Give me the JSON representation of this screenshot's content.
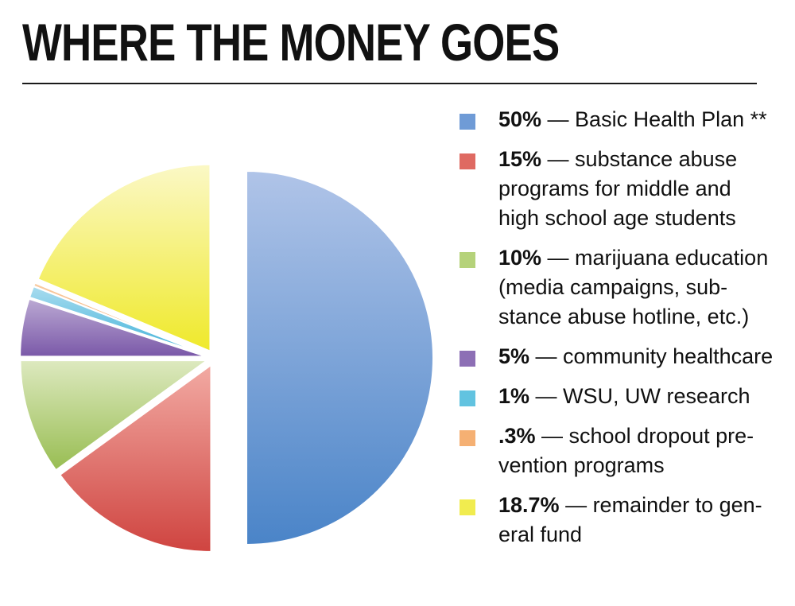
{
  "title": "WHERE THE MONEY GOES",
  "chart_data": {
    "type": "pie",
    "title": "WHERE THE MONEY GOES",
    "legend_position": "right",
    "slices": [
      {
        "label": "Basic Health Plan **",
        "percent_label": "50%",
        "value": 50,
        "color": "#6f9bd6",
        "color_light": "#b0c4e8",
        "color_dark": "#4a84c8",
        "desc_lines": [
          "— Basic Health Plan **"
        ]
      },
      {
        "label": "substance abuse programs for middle and high school age students",
        "percent_label": "15%",
        "value": 15,
        "color": "#df6a62",
        "color_light": "#f2aaa3",
        "color_dark": "#cf4440",
        "desc_lines": [
          "— substance abuse",
          "programs for middle and",
          "high school age students"
        ]
      },
      {
        "label": "marijuana education (media campaigns, substance abuse hotline, etc.)",
        "percent_label": "10%",
        "value": 10,
        "color": "#b5d27a",
        "color_light": "#dde9bf",
        "color_dark": "#98bd52",
        "desc_lines": [
          "— marijuana education",
          "(media campaigns, sub-",
          "stance abuse hotline, etc.)"
        ]
      },
      {
        "label": "community healthcare",
        "percent_label": "5%",
        "value": 5,
        "color": "#8d6fb5",
        "color_light": "#bba9d3",
        "color_dark": "#7a58a8",
        "desc_lines": [
          "— community healthcare"
        ]
      },
      {
        "label": "WSU, UW research",
        "percent_label": "1%",
        "value": 1,
        "color": "#62c3e0",
        "color_light": "#a8dcef",
        "color_dark": "#3fb1d8",
        "desc_lines": [
          "— WSU, UW research"
        ]
      },
      {
        "label": "school dropout prevention programs",
        "percent_label": ".3%",
        "value": 0.3,
        "color": "#f5b073",
        "color_light": "#f9cda6",
        "color_dark": "#f0994f",
        "desc_lines": [
          "— school dropout pre-",
          "vention programs"
        ]
      },
      {
        "label": "remainder to general fund",
        "percent_label": "18.7%",
        "value": 18.7,
        "color": "#f1ec4f",
        "color_light": "#fbf8c6",
        "color_dark": "#efe92a",
        "desc_lines": [
          "— remainder to gen-",
          "eral fund"
        ]
      }
    ]
  }
}
